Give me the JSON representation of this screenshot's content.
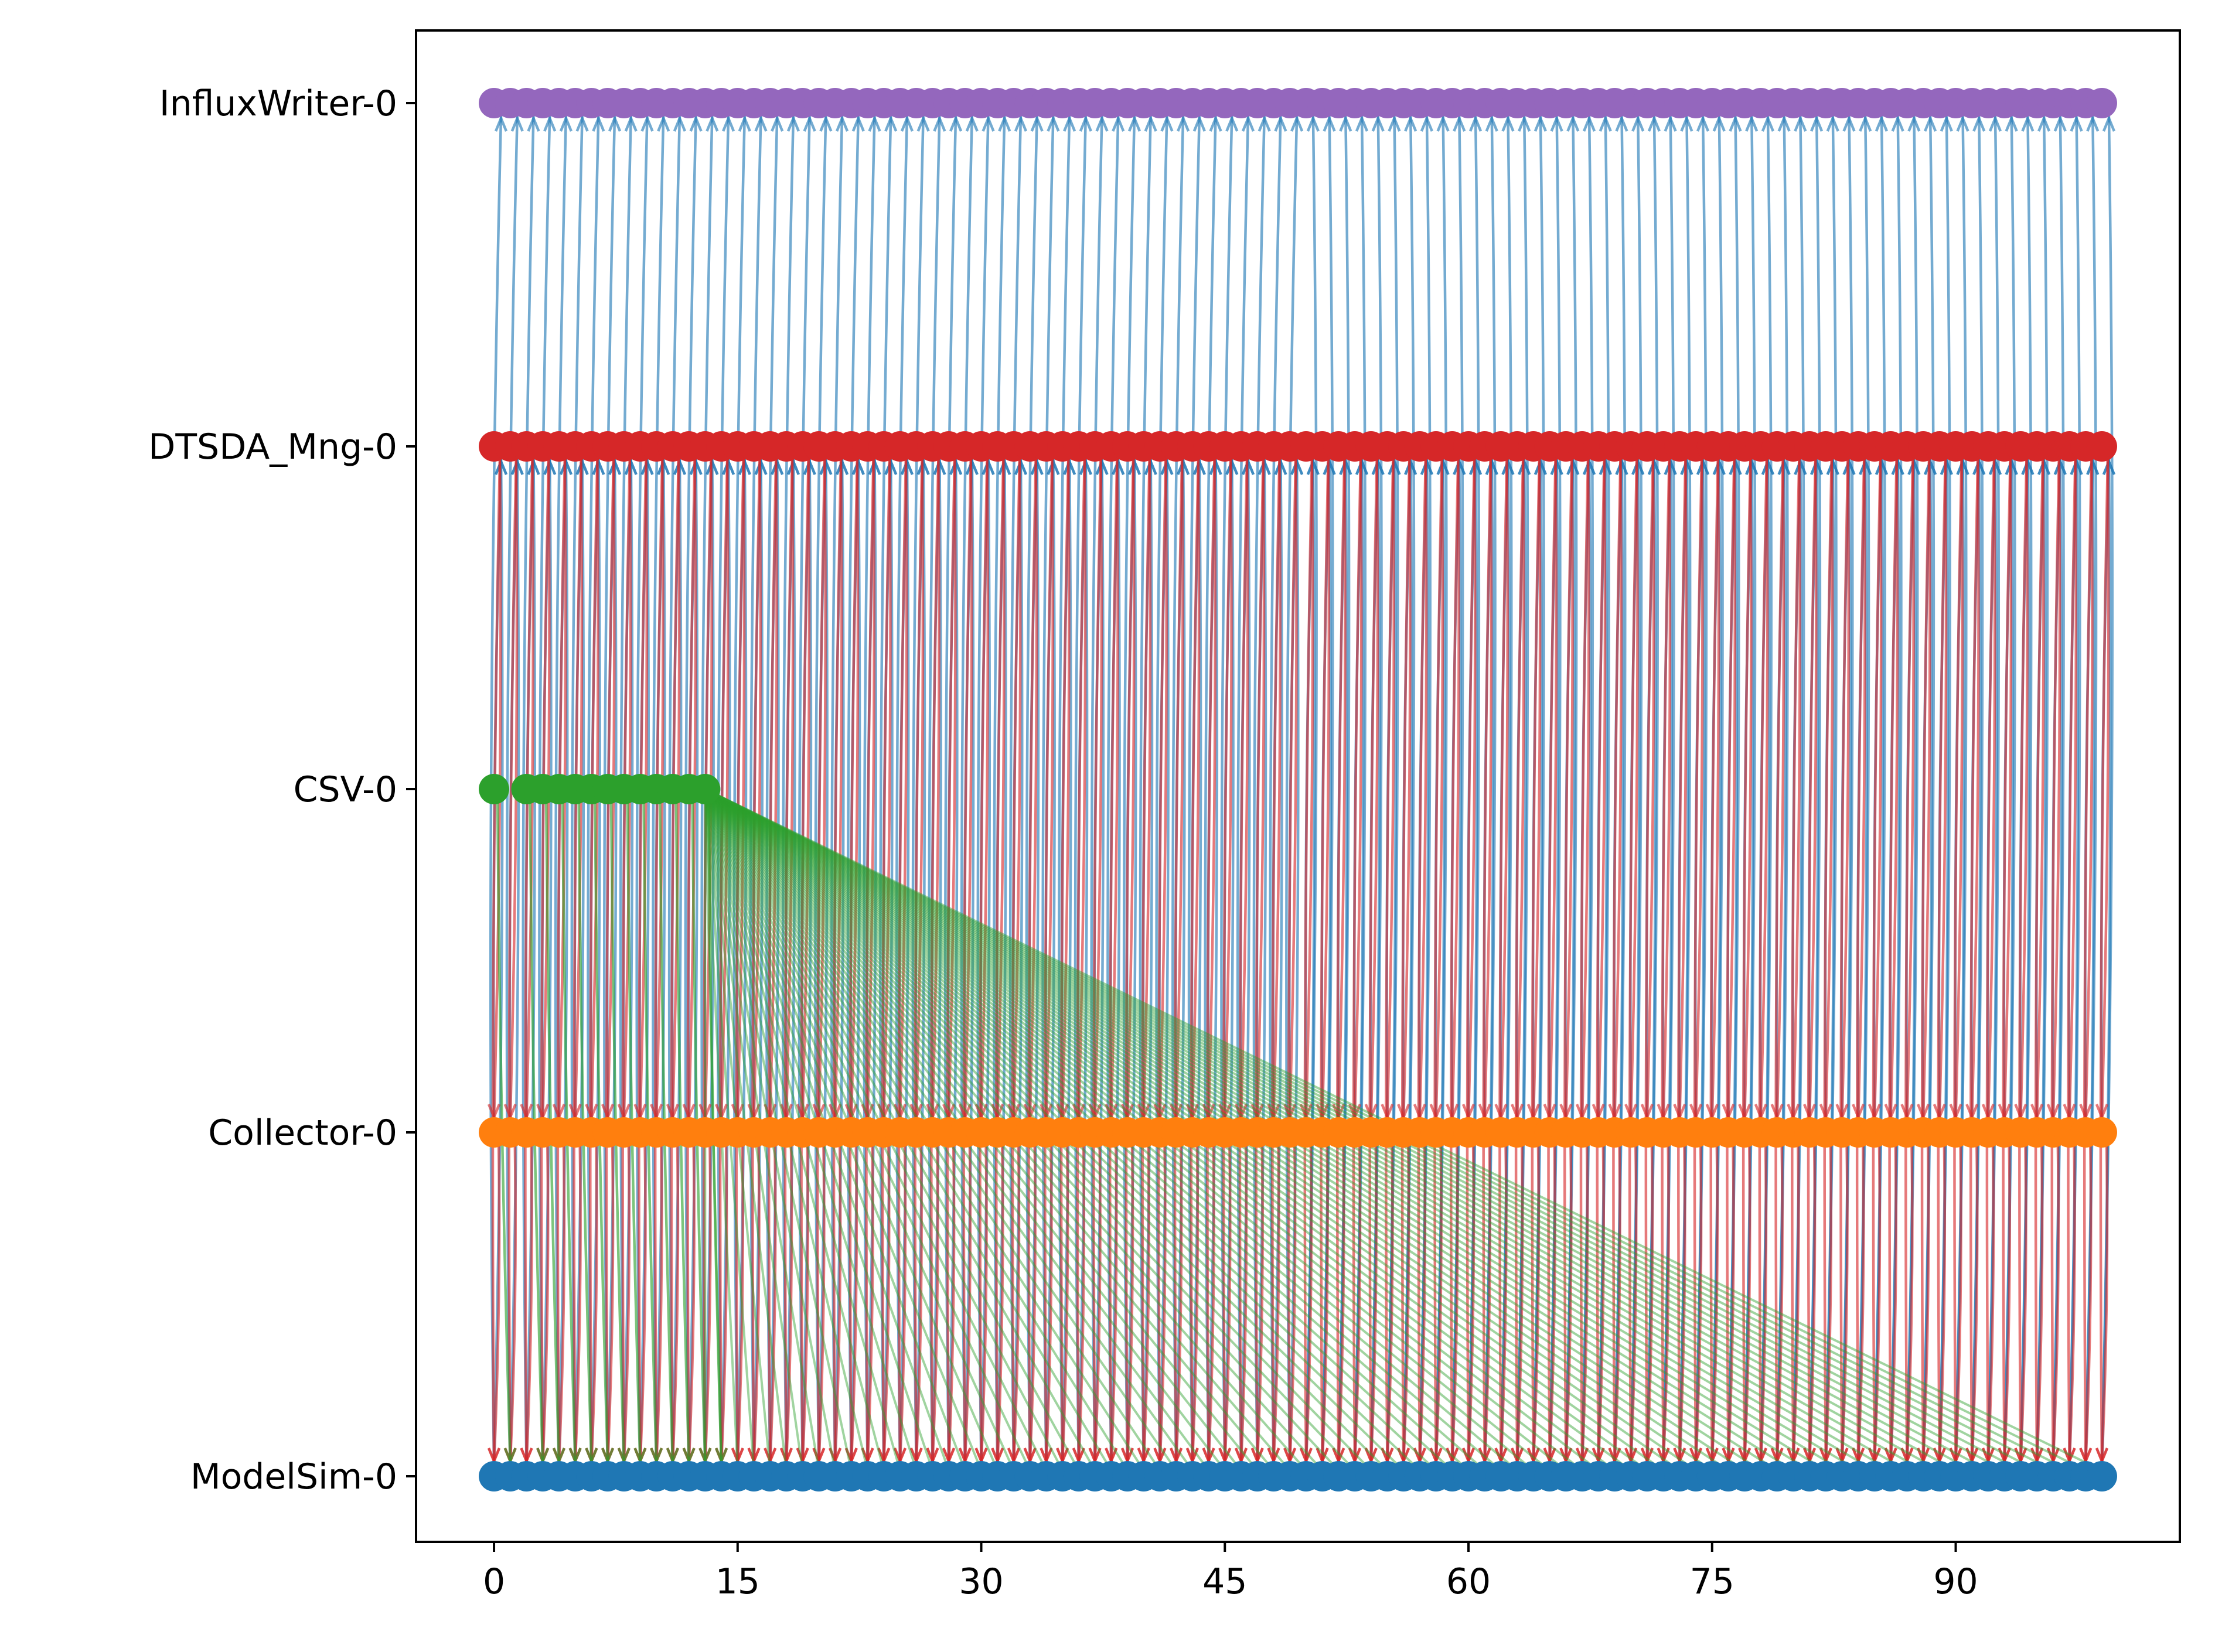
{
  "chart_data": {
    "type": "scatter",
    "description_free": true,
    "x_ticks": [
      "0",
      "15",
      "30",
      "45",
      "60",
      "75",
      "90"
    ],
    "x_tick_values": [
      0,
      15,
      30,
      45,
      60,
      75,
      90
    ],
    "xlim": [
      -4.8,
      103.8
    ],
    "categories": [
      "ModelSim-0",
      "Collector-0",
      "CSV-0",
      "DTSDA_Mng-0",
      "InfluxWriter-0"
    ],
    "series": [
      {
        "key": "ModelSim-0",
        "color": "#1f77b4",
        "x_start": 0,
        "x_end": 99,
        "step": 1,
        "y": 0
      },
      {
        "key": "Collector-0",
        "color": "#ff7f0e",
        "x_start": 0,
        "x_end": 99,
        "step": 1,
        "y": 1
      },
      {
        "key": "CSV-0",
        "color": "#2ca02c",
        "points": [
          0,
          2,
          3,
          4,
          5,
          6,
          7,
          8,
          9,
          10,
          11,
          12,
          13
        ],
        "y": 2
      },
      {
        "key": "DTSDA_Mng-0",
        "color": "#d62728",
        "points_extra": [
          0
        ],
        "x_start": 1,
        "x_end": 99,
        "step": 1,
        "y": 3
      },
      {
        "key": "InfluxWriter-0",
        "color": "#9467bd",
        "x_start": 0,
        "x_end": 99,
        "step": 1,
        "y": 4
      }
    ],
    "edges": {
      "modelsim_to_influx_color": "#1f77b4",
      "dtsda_to_collector_color": "#d62728",
      "csv_to_modelsim_color": "#2ca02c",
      "csv_fan_target_x_range": [
        13,
        99
      ]
    },
    "grid": false,
    "legend": "none"
  }
}
